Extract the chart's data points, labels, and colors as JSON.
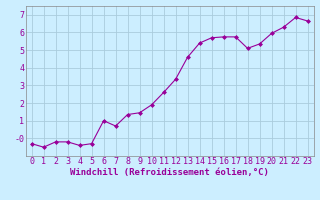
{
  "x": [
    0,
    1,
    2,
    3,
    4,
    5,
    6,
    7,
    8,
    9,
    10,
    11,
    12,
    13,
    14,
    15,
    16,
    17,
    18,
    19,
    20,
    21,
    22,
    23
  ],
  "y": [
    -0.3,
    -0.5,
    -0.2,
    -0.2,
    -0.4,
    -0.3,
    1.0,
    0.7,
    1.35,
    1.45,
    1.9,
    2.6,
    3.35,
    4.6,
    5.4,
    5.7,
    5.75,
    5.75,
    5.1,
    5.35,
    5.95,
    6.3,
    6.85,
    6.65
  ],
  "line_color": "#990099",
  "marker": "D",
  "marker_size": 2,
  "bg_color": "#cceeff",
  "grid_color": "#aaccdd",
  "xlabel": "Windchill (Refroidissement éolien,°C)",
  "xlim": [
    -0.5,
    23.5
  ],
  "ylim": [
    -1.0,
    7.5
  ],
  "yticks": [
    0,
    1,
    2,
    3,
    4,
    5,
    6,
    7
  ],
  "ytick_labels": [
    "-0",
    "1",
    "2",
    "3",
    "4",
    "5",
    "6",
    "7"
  ],
  "xticks": [
    0,
    1,
    2,
    3,
    4,
    5,
    6,
    7,
    8,
    9,
    10,
    11,
    12,
    13,
    14,
    15,
    16,
    17,
    18,
    19,
    20,
    21,
    22,
    23
  ],
  "xlabel_fontsize": 6.5,
  "tick_fontsize": 6,
  "line_color_rgb": "#990099"
}
